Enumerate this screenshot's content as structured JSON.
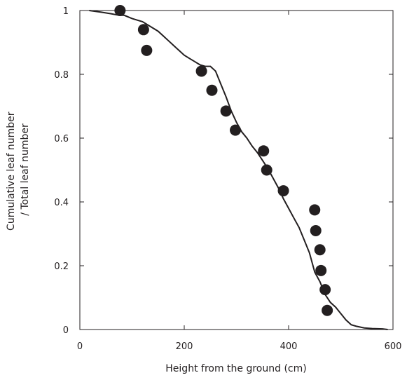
{
  "chart_data": {
    "type": "scatter",
    "title": "",
    "xlabel": "Height from the ground (cm)",
    "ylabel_lines": [
      "Cumulative leaf number",
      "/ Total leaf number"
    ],
    "xlim": [
      0,
      600
    ],
    "ylim": [
      0,
      1
    ],
    "x_ticks": [
      0,
      200,
      400,
      600
    ],
    "x_tick_labels": [
      "0",
      "200",
      "400",
      "600"
    ],
    "y_ticks": [
      0,
      0.2,
      0.4,
      0.6,
      0.8,
      1
    ],
    "y_tick_labels": [
      "0",
      "0.2",
      "0.4",
      "0.6",
      "0.8",
      "1"
    ],
    "grid": false,
    "colors": {
      "ink": "#231f20"
    },
    "series": [
      {
        "type": "line",
        "x": [
          18,
          40,
          60,
          75,
          85,
          100,
          110,
          120,
          130,
          140,
          150,
          160,
          170,
          180,
          190,
          200,
          210,
          220,
          230,
          240,
          250,
          260,
          270,
          280,
          290,
          300,
          310,
          320,
          330,
          340,
          350,
          360,
          370,
          380,
          390,
          400,
          410,
          420,
          430,
          440,
          445,
          450,
          460,
          470,
          480,
          490,
          500,
          510,
          520,
          530,
          545,
          560,
          580,
          590
        ],
        "y": [
          1.0,
          0.995,
          0.99,
          0.985,
          0.985,
          0.975,
          0.97,
          0.965,
          0.955,
          0.945,
          0.935,
          0.92,
          0.905,
          0.89,
          0.875,
          0.86,
          0.85,
          0.84,
          0.83,
          0.825,
          0.825,
          0.81,
          0.77,
          0.73,
          0.685,
          0.65,
          0.62,
          0.6,
          0.575,
          0.555,
          0.53,
          0.505,
          0.475,
          0.445,
          0.41,
          0.38,
          0.35,
          0.32,
          0.28,
          0.24,
          0.21,
          0.18,
          0.15,
          0.11,
          0.085,
          0.07,
          0.05,
          0.03,
          0.015,
          0.01,
          0.005,
          0.003,
          0.002,
          0.0
        ]
      },
      {
        "type": "scatter",
        "x": [
          77,
          122,
          128,
          233,
          253,
          280,
          298,
          352,
          358,
          390,
          450,
          452,
          460,
          462,
          470,
          474
        ],
        "y": [
          1.0,
          0.94,
          0.875,
          0.81,
          0.75,
          0.685,
          0.625,
          0.56,
          0.5,
          0.435,
          0.375,
          0.31,
          0.25,
          0.185,
          0.125,
          0.06
        ]
      }
    ]
  }
}
